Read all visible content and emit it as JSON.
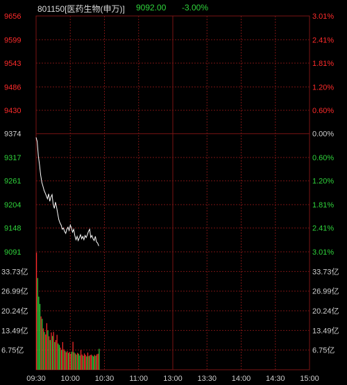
{
  "header": {
    "title": "801150[医药生物(申万)]",
    "price": "9092.00",
    "change": "-3.00%"
  },
  "colors": {
    "background": "#000000",
    "grid": "#7a1414",
    "line": "#ffffff",
    "up": "#ff2b2b",
    "down": "#2fd33b",
    "neutral": "#cfcfcf"
  },
  "chart_data": {
    "type": "line",
    "base_price": 9374,
    "price_axis": {
      "range": [
        9091,
        9656
      ],
      "ticks": [
        {
          "value": 9656,
          "label": "9656",
          "pct": "3.01%",
          "kind": "up"
        },
        {
          "value": 9599,
          "label": "9599",
          "pct": "2.41%",
          "kind": "up"
        },
        {
          "value": 9543,
          "label": "9543",
          "pct": "1.81%",
          "kind": "up"
        },
        {
          "value": 9486,
          "label": "9486",
          "pct": "1.20%",
          "kind": "up"
        },
        {
          "value": 9430,
          "label": "9430",
          "pct": "0.60%",
          "kind": "up"
        },
        {
          "value": 9374,
          "label": "9374",
          "pct": "0.00%",
          "kind": "neutral"
        },
        {
          "value": 9317,
          "label": "9317",
          "pct": "0.60%",
          "kind": "down"
        },
        {
          "value": 9261,
          "label": "9261",
          "pct": "1.20%",
          "kind": "down"
        },
        {
          "value": 9204,
          "label": "9204",
          "pct": "1.81%",
          "kind": "down"
        },
        {
          "value": 9148,
          "label": "9148",
          "pct": "2.41%",
          "kind": "down"
        },
        {
          "value": 9091,
          "label": "9091",
          "pct": "3.01%",
          "kind": "down"
        }
      ]
    },
    "volume_axis": {
      "range": [
        0,
        40.5
      ],
      "unit": "亿",
      "ticks": [
        {
          "value": 33.73,
          "label": "33.73亿"
        },
        {
          "value": 26.99,
          "label": "26.99亿"
        },
        {
          "value": 20.24,
          "label": "20.24亿"
        },
        {
          "value": 13.49,
          "label": "13.49亿"
        },
        {
          "value": 6.75,
          "label": "6.75亿"
        }
      ]
    },
    "time_axis": {
      "minutes": 240,
      "ticks": [
        {
          "minute": 0,
          "label": "09:30"
        },
        {
          "minute": 30,
          "label": "10:00"
        },
        {
          "minute": 60,
          "label": "10:30"
        },
        {
          "minute": 90,
          "label": "11:00"
        },
        {
          "minute": 120,
          "label": "13:00"
        },
        {
          "minute": 150,
          "label": "13:30"
        },
        {
          "minute": 180,
          "label": "14:00"
        },
        {
          "minute": 210,
          "label": "14:30"
        },
        {
          "minute": 240,
          "label": "15:00"
        }
      ]
    },
    "price_line": [
      9365,
      9355,
      9320,
      9300,
      9275,
      9258,
      9248,
      9238,
      9232,
      9225,
      9218,
      9230,
      9212,
      9222,
      9228,
      9205,
      9195,
      9210,
      9198,
      9182,
      9168,
      9160,
      9155,
      9145,
      9148,
      9140,
      9135,
      9145,
      9150,
      9142,
      9155,
      9148,
      9138,
      9145,
      9130,
      9120,
      9128,
      9118,
      9125,
      9132,
      9122,
      9128,
      9120,
      9130,
      9125,
      9132,
      9140,
      9145,
      9125,
      9130,
      9122,
      9118,
      9128,
      9115,
      9112,
      9105
    ],
    "volume": [
      40.2,
      31.5,
      25.1,
      22.6,
      18.3,
      17.5,
      14.2,
      13.0,
      12.1,
      16.0,
      13.5,
      11.5,
      10.2,
      12.8,
      11.6,
      13.0,
      9.5,
      10.2,
      12.0,
      9.0,
      8.5,
      7.6,
      6.8,
      9.5,
      7.0,
      6.5,
      6.0,
      6.4,
      5.8,
      6.1,
      5.5,
      6.2,
      9.6,
      6.0,
      5.6,
      5.2,
      5.8,
      5.5,
      4.9,
      6.8,
      5.2,
      4.8,
      5.6,
      5.1,
      4.6,
      5.9,
      4.7,
      5.0,
      5.2,
      4.9,
      4.6,
      5.1,
      4.8,
      5.3,
      5.5,
      7.2
    ],
    "volume_colors": [
      "up",
      "down",
      "down",
      "down",
      "up",
      "down",
      "up",
      "down",
      "up",
      "up",
      "down",
      "up",
      "down",
      "up",
      "down",
      "up",
      "down",
      "up",
      "up",
      "down",
      "down",
      "up",
      "down",
      "up",
      "up",
      "down",
      "up",
      "up",
      "down",
      "up",
      "up",
      "down",
      "up",
      "down",
      "up",
      "down",
      "up",
      "down",
      "down",
      "up",
      "up",
      "down",
      "up",
      "up",
      "down",
      "up",
      "down",
      "up",
      "up",
      "down",
      "down",
      "up",
      "down",
      "up",
      "up",
      "down"
    ]
  }
}
